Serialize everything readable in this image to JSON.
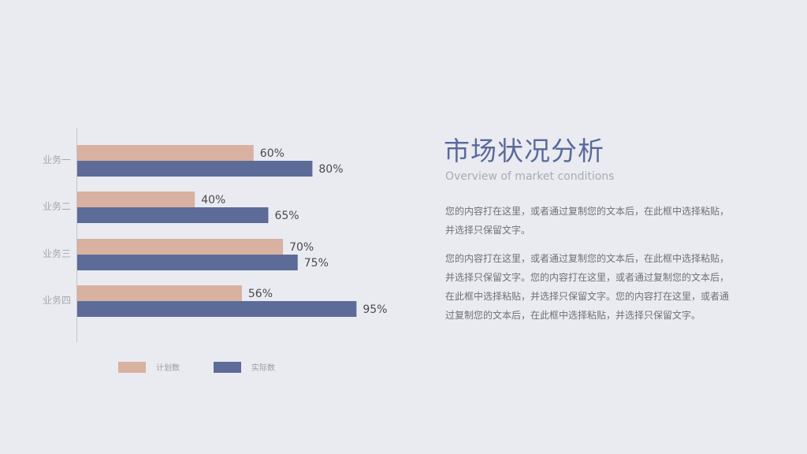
{
  "chart_data": {
    "type": "bar",
    "orientation": "horizontal",
    "categories": [
      "业务一",
      "业务二",
      "业务三",
      "业务四"
    ],
    "series": [
      {
        "name": "计划数",
        "values": [
          60,
          40,
          70,
          56
        ],
        "labels": [
          "60%",
          "40%",
          "70%",
          "56%"
        ],
        "color": "#d8b1a0"
      },
      {
        "name": "实际数",
        "values": [
          80,
          65,
          75,
          95
        ],
        "labels": [
          "80%",
          "65%",
          "75%",
          "95%"
        ],
        "color": "#5d6b98"
      }
    ],
    "value_unit": "%",
    "xlim": [
      0,
      100
    ],
    "grid": false,
    "legend_position": "bottom"
  },
  "content": {
    "title": "市场状况分析",
    "subtitle": "Overview of market conditions",
    "paragraph1": "您的内容打在这里，或者通过复制您的文本后，在此框中选择粘贴，并选择只保留文字。",
    "paragraph2": "您的内容打在这里，或者通过复制您的文本后，在此框中选择粘贴，并选择只保留文字。您的内容打在这里，或者通过复制您的文本后，在此框中选择粘贴，并选择只保留文字。您的内容打在这里，或者通过复制您的文本后，在此框中选择粘贴，并选择只保留文字。"
  }
}
